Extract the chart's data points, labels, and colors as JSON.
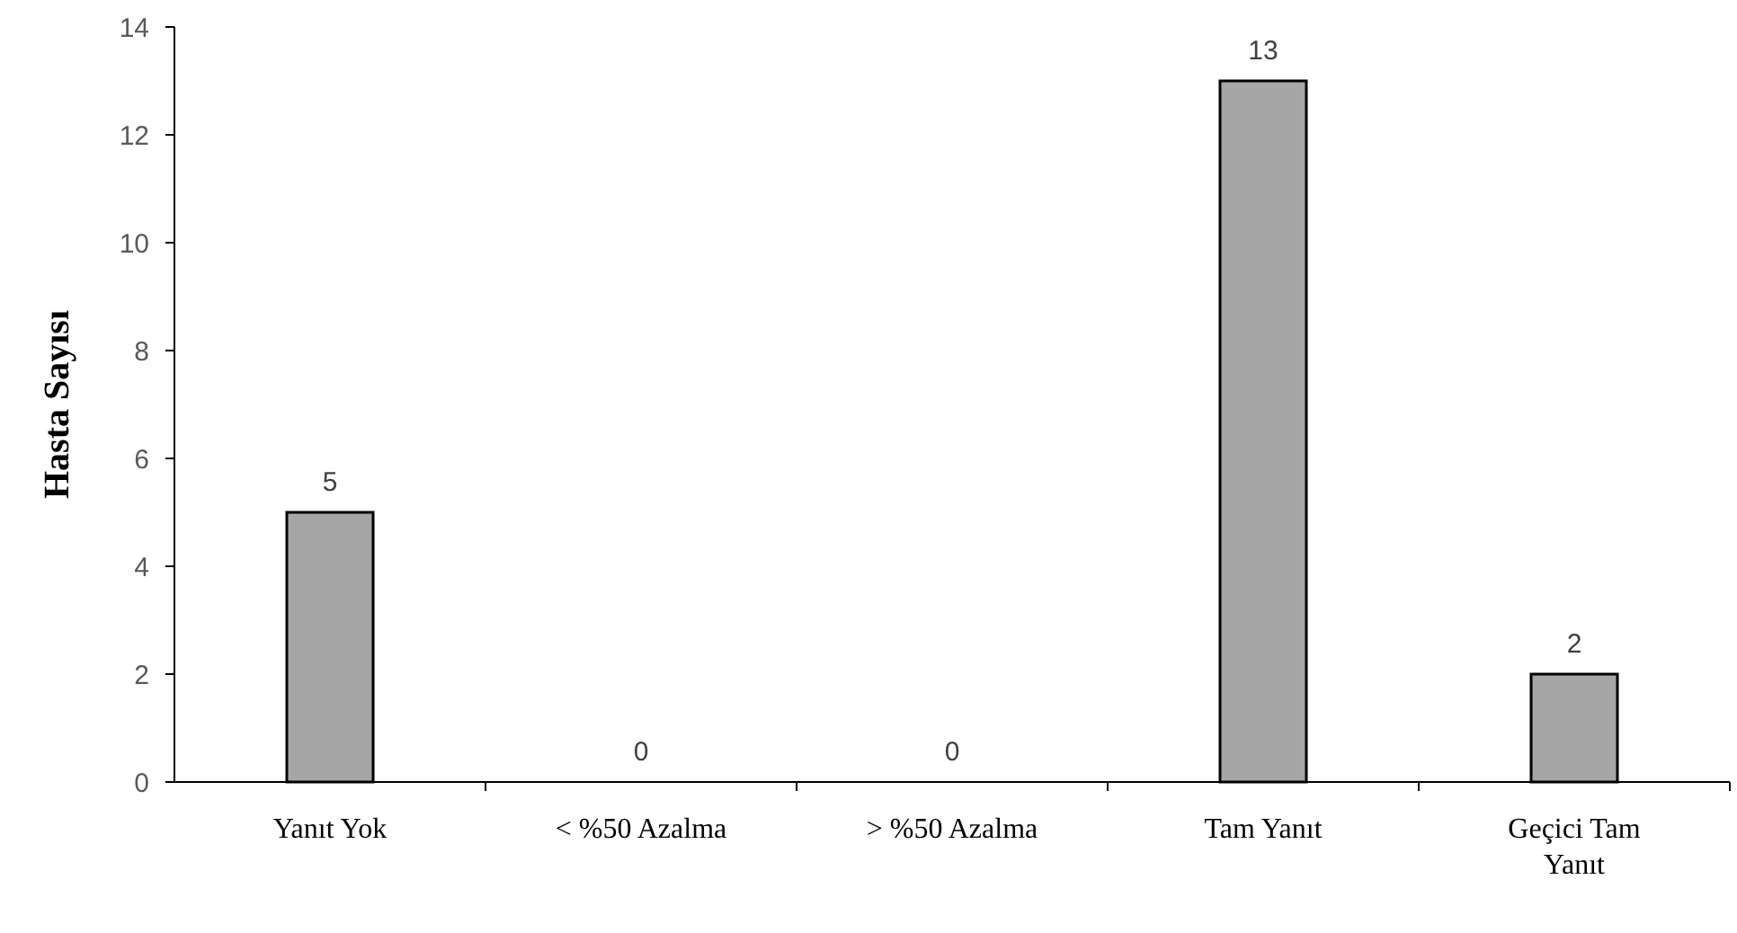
{
  "chart_data": {
    "type": "bar",
    "ylabel": "Hasta Sayısı",
    "categories": [
      "Yanıt Yok",
      "< %50 Azalma",
      "> %50 Azalma",
      "Tam Yanıt",
      "Geçici Tam Yanıt"
    ],
    "values": [
      5,
      0,
      0,
      13,
      2
    ],
    "color": "#a6a6a6",
    "ylim": [
      0,
      14
    ],
    "yticks": [
      0,
      2,
      4,
      6,
      8,
      10,
      12,
      14
    ],
    "grid": false,
    "data_labels": true
  }
}
